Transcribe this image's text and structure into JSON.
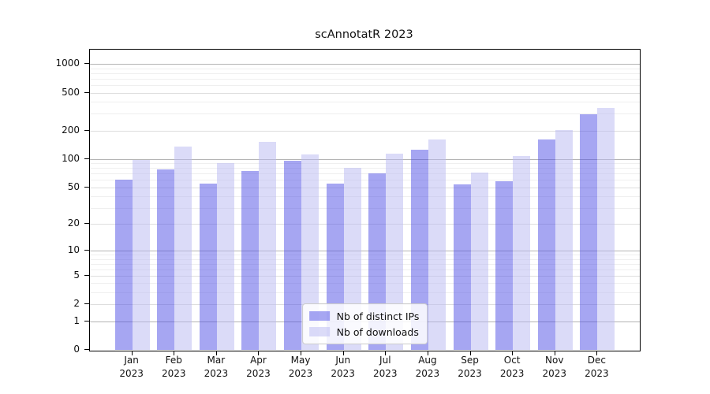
{
  "chart_data": {
    "type": "bar",
    "title": "scAnnotatR 2023",
    "categories": [
      "Jan 2023",
      "Feb 2023",
      "Mar 2023",
      "Apr 2023",
      "May 2023",
      "Jun 2023",
      "Jul 2023",
      "Aug 2023",
      "Sep 2023",
      "Oct 2023",
      "Nov 2023",
      "Dec 2023"
    ],
    "series": [
      {
        "name": "Nb of distinct IPs",
        "color": "rgba(77,77,229,0.5)",
        "values": [
          60,
          78,
          55,
          74,
          96,
          55,
          70,
          125,
          54,
          58,
          160,
          295
        ]
      },
      {
        "name": "Nb of downloads",
        "color": "rgba(183,183,241,0.5)",
        "values": [
          98,
          136,
          90,
          153,
          111,
          80,
          114,
          162,
          72,
          108,
          203,
          347
        ]
      }
    ],
    "yscale": "log1p",
    "ylim": [
      0,
      1416
    ],
    "yticks": [
      0,
      1,
      2,
      5,
      10,
      20,
      50,
      100,
      200,
      500,
      1000
    ],
    "minor_gridlines": [
      3,
      4,
      6,
      7,
      8,
      9,
      30,
      40,
      60,
      70,
      80,
      90,
      300,
      400,
      600,
      700,
      800,
      900
    ],
    "grid": true,
    "legend_position": "lower center"
  },
  "colors": {
    "grid_power10": "#b4b4b4",
    "grid_labeled": "#dedede",
    "grid_minor": "#efefef",
    "frame": "#000000",
    "text": "#111111"
  }
}
